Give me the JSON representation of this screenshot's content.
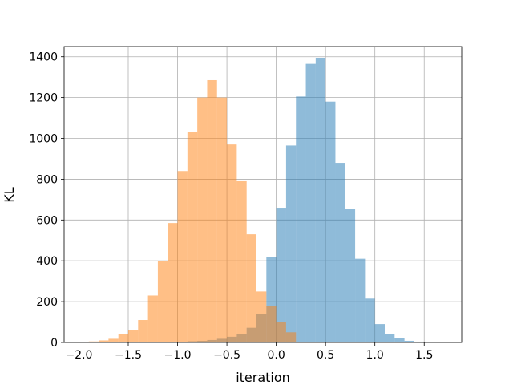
{
  "chart_data": {
    "type": "bar",
    "subtype": "overlapping-histogram",
    "title": "",
    "xlabel": "iteration",
    "ylabel": "KL",
    "xlim": [
      -2.15,
      1.88
    ],
    "ylim": [
      0,
      1450
    ],
    "grid": true,
    "legend": "none",
    "x_ticks": [
      -2.0,
      -1.5,
      -1.0,
      -0.5,
      0.0,
      0.5,
      1.0,
      1.5
    ],
    "x_tick_labels": [
      "−2.0",
      "−1.5",
      "−1.0",
      "−0.5",
      "0.0",
      "0.5",
      "1.0",
      "1.5"
    ],
    "y_ticks": [
      0,
      200,
      400,
      600,
      800,
      1000,
      1200,
      1400
    ],
    "y_tick_labels": [
      "0",
      "200",
      "400",
      "600",
      "800",
      "1000",
      "1200",
      "1400"
    ],
    "series": [
      {
        "color": "#1f77b4",
        "alpha": 0.5,
        "bin_edges": [
          -1.2,
          -1.1,
          -1.0,
          -0.9,
          -0.8,
          -0.7,
          -0.6,
          -0.5,
          -0.4,
          -0.3,
          -0.2,
          -0.1,
          0.0,
          0.1,
          0.2,
          0.3,
          0.4,
          0.5,
          0.6,
          0.7,
          0.8,
          0.9,
          1.0,
          1.1,
          1.2,
          1.3,
          1.4,
          1.5,
          1.6,
          1.7
        ],
        "counts": [
          2,
          3,
          4,
          6,
          8,
          12,
          18,
          28,
          42,
          72,
          140,
          420,
          660,
          965,
          1205,
          1365,
          1395,
          1180,
          880,
          655,
          410,
          215,
          90,
          40,
          20,
          8,
          4,
          2,
          1
        ]
      },
      {
        "color": "#ff7f0e",
        "alpha": 0.5,
        "bin_edges": [
          -1.9,
          -1.8,
          -1.7,
          -1.6,
          -1.5,
          -1.4,
          -1.3,
          -1.2,
          -1.1,
          -1.0,
          -0.9,
          -0.8,
          -0.7,
          -0.6,
          -0.5,
          -0.4,
          -0.3,
          -0.2,
          -0.1,
          0.0,
          0.1,
          0.2
        ],
        "counts": [
          5,
          10,
          18,
          40,
          60,
          110,
          230,
          400,
          585,
          840,
          1030,
          1200,
          1285,
          1200,
          970,
          790,
          530,
          250,
          180,
          100,
          50
        ]
      }
    ]
  }
}
